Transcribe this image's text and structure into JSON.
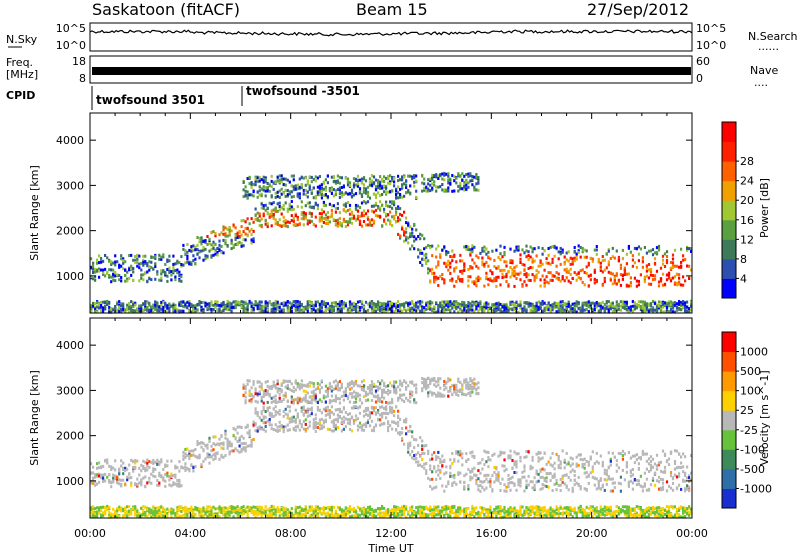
{
  "header": {
    "station": "Saskatoon (fitACF)",
    "beam": "Beam 15",
    "date": "27/Sep/2012"
  },
  "side_labels": {
    "n_sky": "N.Sky",
    "n_search": "N.Search",
    "freq_line1": "Freq.",
    "freq_line2": "[MHz]",
    "nave": "Nave",
    "cpid": "CPID",
    "dots": "......",
    "dots_short": "...."
  },
  "noise_panel": {
    "left_ticks": [
      "10^5",
      "10^0"
    ],
    "right_ticks": [
      "10^5",
      "10^0"
    ]
  },
  "freq_panel": {
    "left_ticks": [
      "18",
      "8"
    ],
    "right_ticks": [
      "60",
      "0"
    ]
  },
  "cpid_panel": {
    "segments": [
      "twofsound 3501",
      "twofsound -3501"
    ]
  },
  "colors": {
    "power": [
      "#0000ff",
      "#2c4fb0",
      "#3d7a5a",
      "#5aa040",
      "#a0c830",
      "#f0a000",
      "#ff6000",
      "#ff2000",
      "#ff0000"
    ],
    "velocity": [
      "#1a2fd0",
      "#2e6fa8",
      "#3f8a5a",
      "#66c23a",
      "#b8b8b8",
      "#ffd000",
      "#ff9a00",
      "#ff5000",
      "#ff0000"
    ]
  },
  "chart_data": [
    {
      "type": "heatmap",
      "title": "",
      "xlabel": "Time UT",
      "ylabel": "Slant Range [km]",
      "x_ticks": [
        "00:00",
        "04:00",
        "08:00",
        "12:00",
        "16:00",
        "20:00",
        "00:00"
      ],
      "y_ticks": [
        "1000",
        "2000",
        "3000",
        "4000"
      ],
      "xlim_hours": [
        0,
        24
      ],
      "ylim_km": [
        180,
        4600
      ],
      "colorbar_label": "Power [dB]",
      "colorbar_ticks": [
        "4",
        "8",
        "12",
        "16",
        "20",
        "24",
        "28"
      ],
      "colorbar_range": [
        0,
        30
      ]
    },
    {
      "type": "heatmap",
      "title": "",
      "xlabel": "Time UT",
      "ylabel": "Slant Range [km]",
      "x_ticks": [
        "00:00",
        "04:00",
        "08:00",
        "12:00",
        "16:00",
        "20:00",
        "00:00"
      ],
      "y_ticks": [
        "1000",
        "2000",
        "3000",
        "4000"
      ],
      "xlim_hours": [
        0,
        24
      ],
      "ylim_km": [
        180,
        4600
      ],
      "colorbar_label": "Velocity [m s^-1]",
      "colorbar_ticks": [
        "1000",
        "500",
        "100",
        "25",
        "-25",
        "-100",
        "-500",
        "-1000"
      ]
    }
  ]
}
